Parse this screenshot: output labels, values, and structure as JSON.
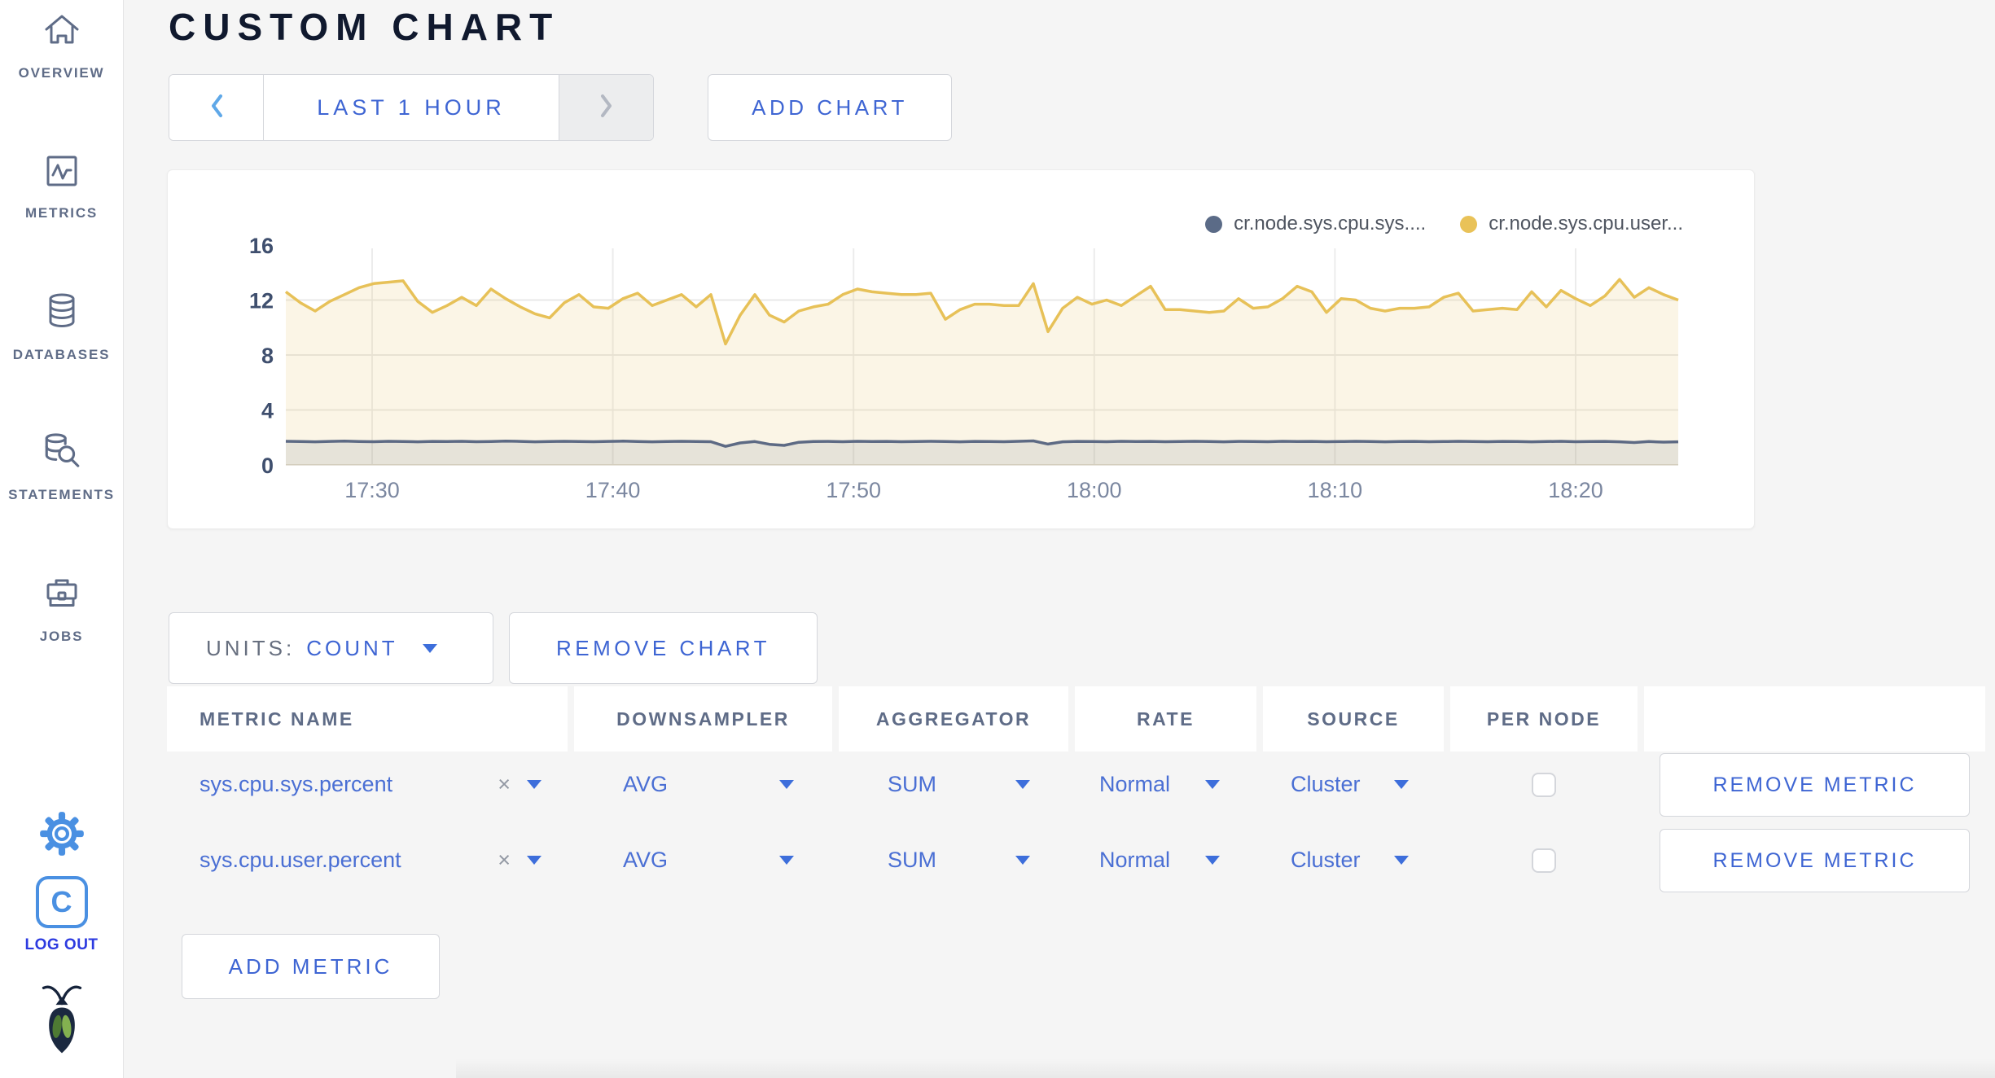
{
  "sidebar": {
    "items": [
      {
        "label": "OVERVIEW"
      },
      {
        "label": "METRICS"
      },
      {
        "label": "DATABASES"
      },
      {
        "label": "STATEMENTS"
      },
      {
        "label": "JOBS"
      }
    ],
    "logout_label": "LOG OUT"
  },
  "header": {
    "title": "CUSTOM CHART"
  },
  "toolbar": {
    "time_range": "LAST 1 HOUR",
    "add_chart": "ADD CHART"
  },
  "chart": {
    "legend": [
      {
        "label": "cr.node.sys.cpu.sys....",
        "color": "#5b6b87"
      },
      {
        "label": "cr.node.sys.cpu.user...",
        "color": "#e9c258"
      }
    ]
  },
  "chart_data": {
    "type": "line",
    "title": "",
    "xlabel": "",
    "ylabel": "",
    "x_ticks": [
      "17:30",
      "17:40",
      "17:50",
      "18:00",
      "18:10",
      "18:20"
    ],
    "ylim": [
      0,
      16
    ],
    "y_ticks": [
      0,
      4,
      8,
      12,
      16
    ],
    "grid": true,
    "legend_position": "top-right",
    "series": [
      {
        "name": "cr.node.sys.cpu.user.percent",
        "color": "#e7c158",
        "fill": "rgba(232,195,98,0.16)",
        "values": [
          12.6,
          11.8,
          11.2,
          11.9,
          12.4,
          12.9,
          13.2,
          13.3,
          13.4,
          11.9,
          11.1,
          11.6,
          12.2,
          11.6,
          12.8,
          12.1,
          11.5,
          11.0,
          10.7,
          11.8,
          12.4,
          11.5,
          11.4,
          12.1,
          12.5,
          11.6,
          12.0,
          12.4,
          11.5,
          12.4,
          8.8,
          10.9,
          12.4,
          10.9,
          10.4,
          11.2,
          11.5,
          11.7,
          12.4,
          12.8,
          12.6,
          12.5,
          12.4,
          12.4,
          12.5,
          10.6,
          11.3,
          11.7,
          11.7,
          11.6,
          11.6,
          13.2,
          9.7,
          11.4,
          12.2,
          11.7,
          12.0,
          11.6,
          12.3,
          13.0,
          11.3,
          11.3,
          11.2,
          11.1,
          11.2,
          12.1,
          11.4,
          11.5,
          12.1,
          13.0,
          12.6,
          11.1,
          12.1,
          12.0,
          11.4,
          11.2,
          11.4,
          11.4,
          11.5,
          12.2,
          12.5,
          11.2,
          11.3,
          11.4,
          11.3,
          12.6,
          11.5,
          12.7,
          12.1,
          11.6,
          12.3,
          13.5,
          12.2,
          12.9,
          12.4,
          12.0
        ]
      },
      {
        "name": "cr.node.sys.cpu.sys.percent",
        "color": "#5d6a84",
        "fill": "rgba(96,108,132,0.13)",
        "values": [
          1.72,
          1.7,
          1.68,
          1.71,
          1.73,
          1.7,
          1.69,
          1.72,
          1.7,
          1.68,
          1.71,
          1.7,
          1.72,
          1.69,
          1.7,
          1.73,
          1.71,
          1.68,
          1.7,
          1.72,
          1.7,
          1.69,
          1.71,
          1.73,
          1.7,
          1.68,
          1.7,
          1.72,
          1.7,
          1.69,
          1.35,
          1.6,
          1.7,
          1.5,
          1.42,
          1.65,
          1.7,
          1.71,
          1.69,
          1.72,
          1.7,
          1.71,
          1.69,
          1.7,
          1.72,
          1.7,
          1.68,
          1.71,
          1.7,
          1.69,
          1.72,
          1.75,
          1.52,
          1.68,
          1.71,
          1.7,
          1.69,
          1.72,
          1.7,
          1.71,
          1.69,
          1.7,
          1.72,
          1.7,
          1.68,
          1.71,
          1.7,
          1.69,
          1.72,
          1.7,
          1.71,
          1.69,
          1.7,
          1.72,
          1.7,
          1.68,
          1.7,
          1.71,
          1.69,
          1.7,
          1.72,
          1.7,
          1.69,
          1.71,
          1.7,
          1.68,
          1.7,
          1.72,
          1.69,
          1.7,
          1.71,
          1.68,
          1.63,
          1.7,
          1.66,
          1.68
        ]
      }
    ]
  },
  "chart_controls": {
    "units_label": "UNITS:",
    "units_value": "COUNT",
    "remove_chart": "REMOVE CHART"
  },
  "table": {
    "headers": [
      "METRIC NAME",
      "DOWNSAMPLER",
      "AGGREGATOR",
      "RATE",
      "SOURCE",
      "PER NODE"
    ],
    "rows": [
      {
        "metric_name": "sys.cpu.sys.percent",
        "clear": "×",
        "downsampler": "AVG",
        "aggregator": "SUM",
        "rate": "Normal",
        "source": "Cluster",
        "per_node_checked": false,
        "remove_label": "REMOVE METRIC"
      },
      {
        "metric_name": "sys.cpu.user.percent",
        "clear": "×",
        "downsampler": "AVG",
        "aggregator": "SUM",
        "rate": "Normal",
        "source": "Cluster",
        "per_node_checked": false,
        "remove_label": "REMOVE METRIC"
      }
    ],
    "add_metric": "ADD METRIC"
  }
}
